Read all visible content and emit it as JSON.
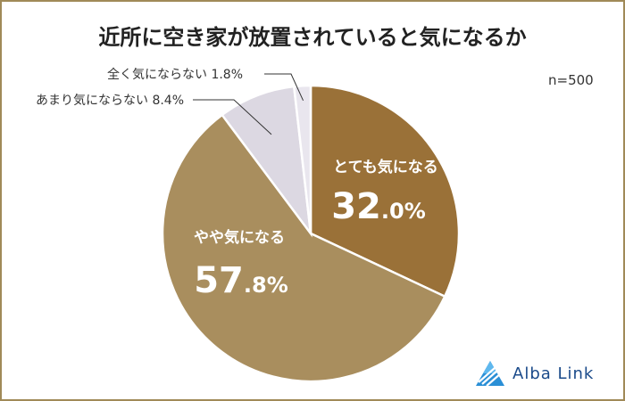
{
  "chart_data": {
    "type": "pie",
    "title": "近所に空き家が放置されていると気になるか",
    "sample_size": "n=500",
    "slices": [
      {
        "label": "とても気になる",
        "value": 32.0,
        "value_int": "32",
        "value_dec": ".0%",
        "color": "#9a7138"
      },
      {
        "label": "やや気になる",
        "value": 57.8,
        "value_int": "57",
        "value_dec": ".8%",
        "color": "#a98e5e"
      },
      {
        "label": "あまり気にならない",
        "value": 8.4,
        "value_text": "8.4%",
        "color": "#dcd8e2"
      },
      {
        "label": "全く気にならない",
        "value": 1.8,
        "value_text": "1.8%",
        "color": "#e9e6ee"
      }
    ],
    "start_angle": "12 o'clock",
    "direction": "clockwise"
  },
  "brand": {
    "name": "Alba Link",
    "color": "#1a4a8a"
  }
}
